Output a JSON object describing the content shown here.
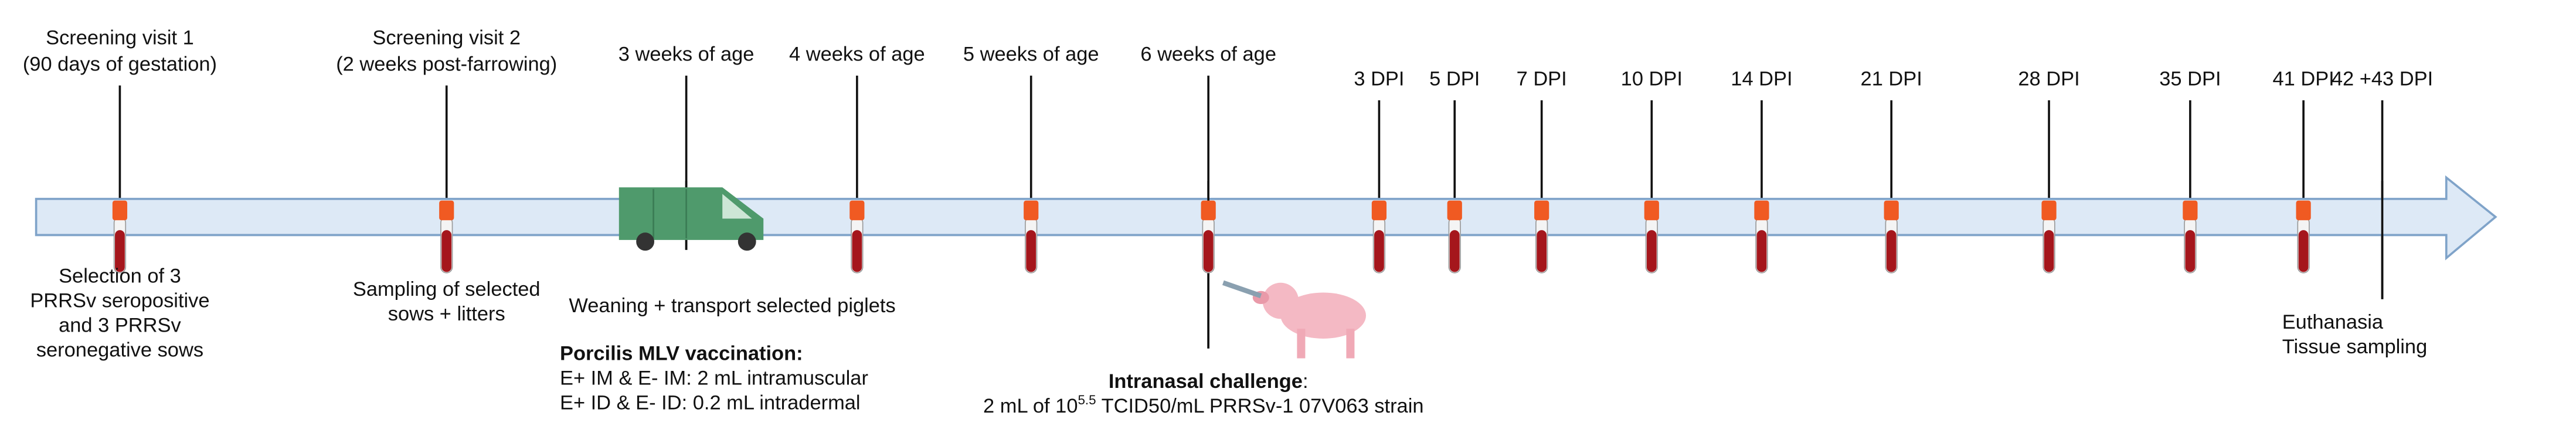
{
  "events": [
    {
      "label": [
        "Screening visit 1",
        "(90 days of gestation)"
      ],
      "below": [
        "Selection of 3",
        "PRRSv seropositive",
        "and 3 PRRSv",
        "seronegative  sows"
      ]
    },
    {
      "label": [
        "Screening visit 2",
        "(2 weeks post-farrowing)"
      ],
      "below": [
        "Sampling of selected",
        "sows + litters"
      ]
    },
    {
      "label": [
        "3 weeks of age"
      ],
      "below": [
        "Weaning + transport selected piglets"
      ]
    },
    {
      "label": [
        "4 weeks of age"
      ],
      "below": []
    },
    {
      "label": [
        "5 weeks of age"
      ],
      "below": []
    },
    {
      "label": [
        "6 weeks of age"
      ],
      "below": []
    },
    {
      "label": [
        "3 DPI"
      ],
      "below": []
    },
    {
      "label": [
        "5 DPI"
      ],
      "below": []
    },
    {
      "label": [
        "7 DPI"
      ],
      "below": []
    },
    {
      "label": [
        "10 DPI"
      ],
      "below": []
    },
    {
      "label": [
        "14 DPI"
      ],
      "below": []
    },
    {
      "label": [
        "21 DPI"
      ],
      "below": []
    },
    {
      "label": [
        "28 DPI"
      ],
      "below": []
    },
    {
      "label": [
        "35 DPI"
      ],
      "below": []
    },
    {
      "label": [
        "41 DPI"
      ],
      "below": []
    },
    {
      "label": [
        "42 +43 DPI"
      ],
      "below": [
        "Euthanasia",
        "Tissue sampling"
      ]
    }
  ],
  "vaccination": {
    "title": "Porcilis MLV vaccination:",
    "lines": [
      "E+ IM & E- IM: 2 mL intramuscular",
      "E+ ID & E- ID: 0.2 mL intradermal"
    ]
  },
  "challenge": {
    "title": "Intranasal challenge",
    "title_suffix": ":",
    "dose_prefix": "2 mL of 10",
    "dose_exponent": "5.5",
    "dose_suffix": " TCID50/mL PRRSv-1 07V063 strain"
  }
}
